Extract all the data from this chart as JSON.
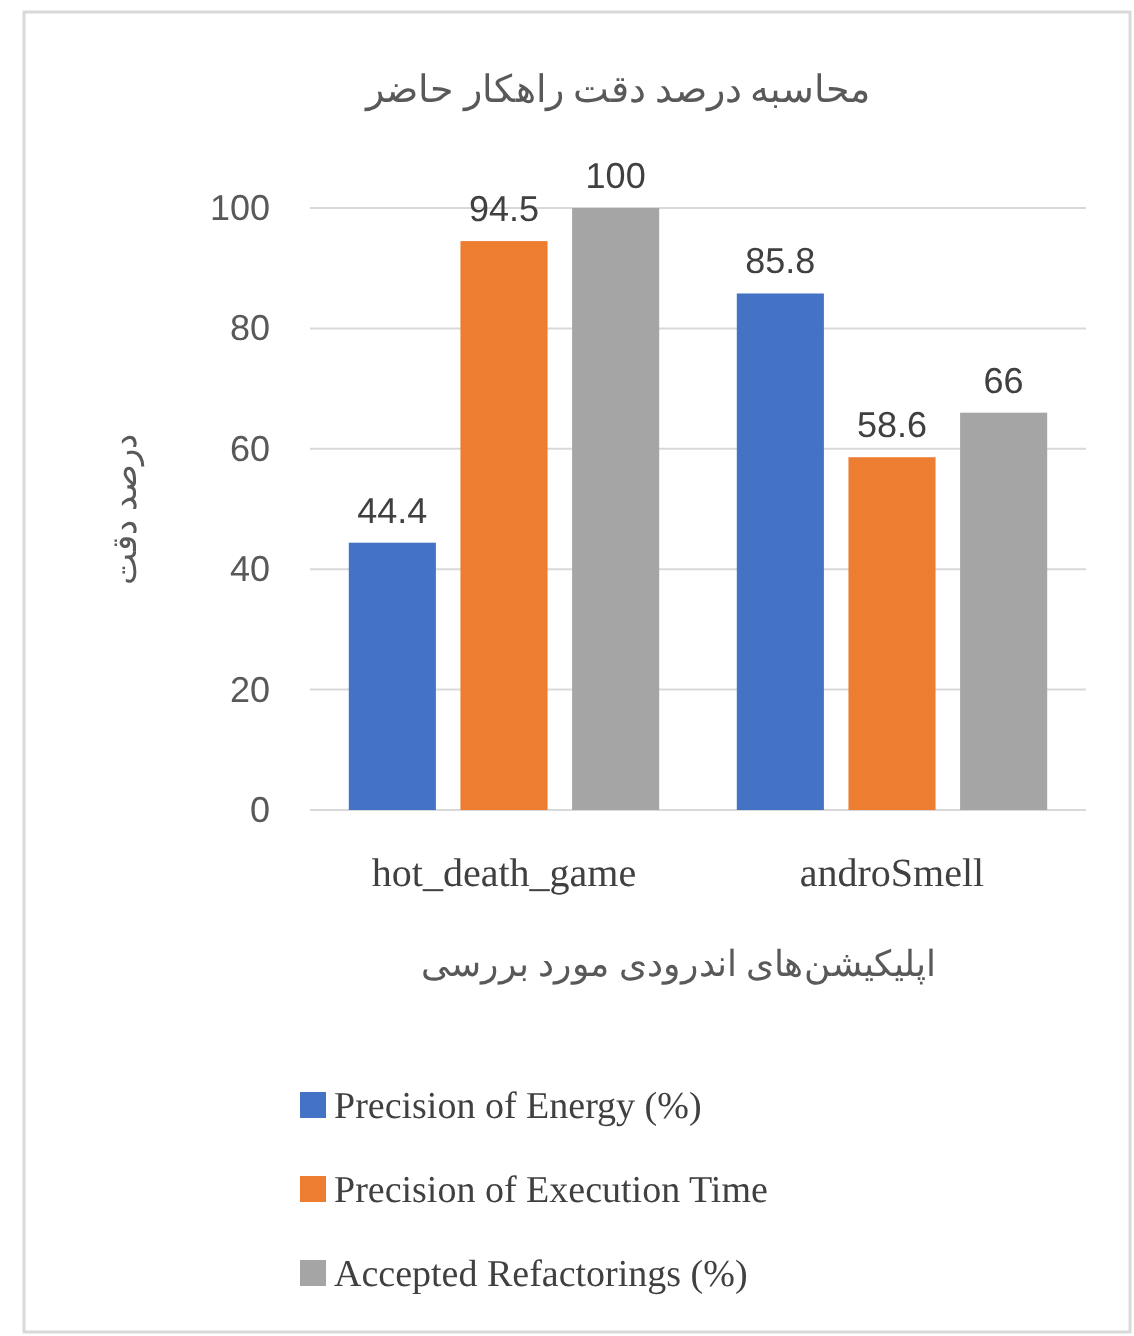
{
  "chart_data": {
    "type": "bar",
    "title": "محاسبه درصد دقت راهکار حاضر",
    "xlabel": "اپلیکیشن‌های اندرودی مورد بررسی",
    "ylabel": "درصد دقت",
    "categories": [
      "hot_death_game",
      "androSmell"
    ],
    "series": [
      {
        "name": "Precision of Energy (%)",
        "color": "#4472c4",
        "values": [
          44.4,
          85.8
        ]
      },
      {
        "name": "Precision of Execution Time",
        "color": "#ed7d31",
        "values": [
          94.5,
          58.6
        ]
      },
      {
        "name": "Accepted Refactorings (%)",
        "color": "#a5a5a5",
        "values": [
          100,
          66
        ]
      }
    ],
    "ylim": [
      0,
      100
    ],
    "yticks": [
      0,
      20,
      40,
      60,
      80,
      100
    ],
    "grid": "y",
    "data_labels": true,
    "legend": "bottom"
  }
}
